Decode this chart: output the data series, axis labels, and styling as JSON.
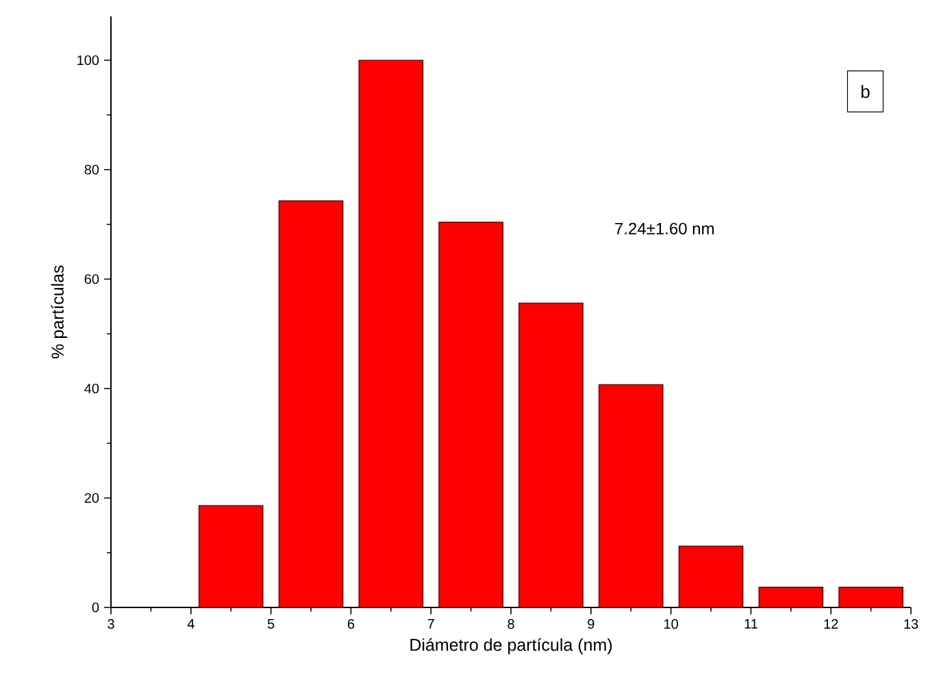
{
  "chart_data": {
    "type": "histogram",
    "xlabel": "Diámetro de partícula (nm)",
    "ylabel": "% partículas",
    "annotations": [
      "b",
      "7.24±1.60 nm"
    ],
    "bins": [
      3,
      4,
      5,
      6,
      7,
      8,
      9,
      10,
      11,
      12,
      13
    ],
    "values": [
      0,
      18.6,
      74.3,
      100,
      70.4,
      55.6,
      40.7,
      11.2,
      3.7,
      3.7
    ],
    "color": "#ff0000",
    "xlim": [
      3,
      13
    ],
    "ylim": [
      0,
      108
    ],
    "xticks": [
      3,
      4,
      5,
      6,
      7,
      8,
      9,
      10,
      11,
      12,
      13
    ],
    "yticks": [
      0,
      20,
      40,
      60,
      80,
      100
    ]
  }
}
